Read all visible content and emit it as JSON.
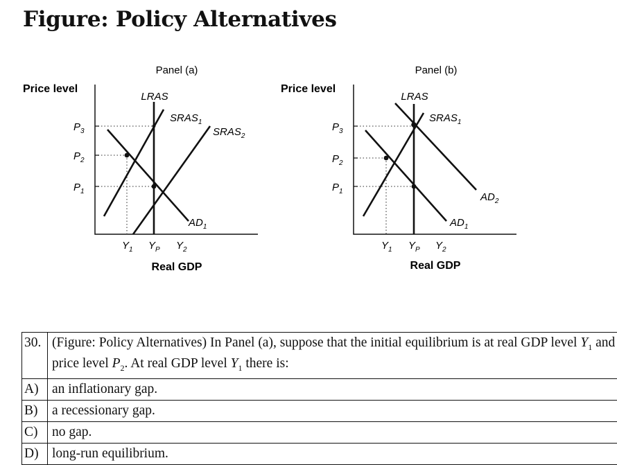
{
  "figure": {
    "title": "Figure: Policy Alternatives",
    "panel_a": {
      "label": "Panel (a)",
      "ylabel": "Price level",
      "xlabel": "Real GDP",
      "curves": {
        "lras": "LRAS",
        "sras1": "SRAS",
        "sras1_sub": "1",
        "sras2": "SRAS",
        "sras2_sub": "2",
        "ad1": "AD",
        "ad1_sub": "1"
      },
      "price_ticks": [
        {
          "main": "P",
          "sub": "3"
        },
        {
          "main": "P",
          "sub": "2"
        },
        {
          "main": "P",
          "sub": "1"
        }
      ],
      "gdp_ticks": [
        {
          "main": "Y",
          "sub": "1"
        },
        {
          "main": "Y",
          "sub": "P"
        },
        {
          "main": "Y",
          "sub": "2"
        }
      ]
    },
    "panel_b": {
      "label": "Panel (b)",
      "ylabel": "Price level",
      "xlabel": "Real GDP",
      "curves": {
        "lras": "LRAS",
        "sras1": "SRAS",
        "sras1_sub": "1",
        "ad1": "AD",
        "ad1_sub": "1",
        "ad2": "AD",
        "ad2_sub": "2"
      },
      "price_ticks": [
        {
          "main": "P",
          "sub": "3"
        },
        {
          "main": "P",
          "sub": "2"
        },
        {
          "main": "P",
          "sub": "1"
        }
      ],
      "gdp_ticks": [
        {
          "main": "Y",
          "sub": "1"
        },
        {
          "main": "Y",
          "sub": "P"
        },
        {
          "main": "Y",
          "sub": "2"
        }
      ]
    }
  },
  "question": {
    "number": "30.",
    "text_part1": "(Figure: Policy Alternatives) In Panel (a), suppose that the initial equilibrium is at real GDP level ",
    "y_var": "Y",
    "y_sub": "1",
    "text_part2": " and price level ",
    "p_var": "P",
    "p_sub": "2",
    "text_part3": ". At real GDP level ",
    "y_var2": "Y",
    "y_sub2": "1",
    "text_part4": " there is:",
    "options": [
      {
        "letter": "A)",
        "text": "an inflationary gap."
      },
      {
        "letter": "B)",
        "text": "a recessionary gap."
      },
      {
        "letter": "C)",
        "text": "no gap."
      },
      {
        "letter": "D)",
        "text": "long-run equilibrium."
      }
    ]
  }
}
